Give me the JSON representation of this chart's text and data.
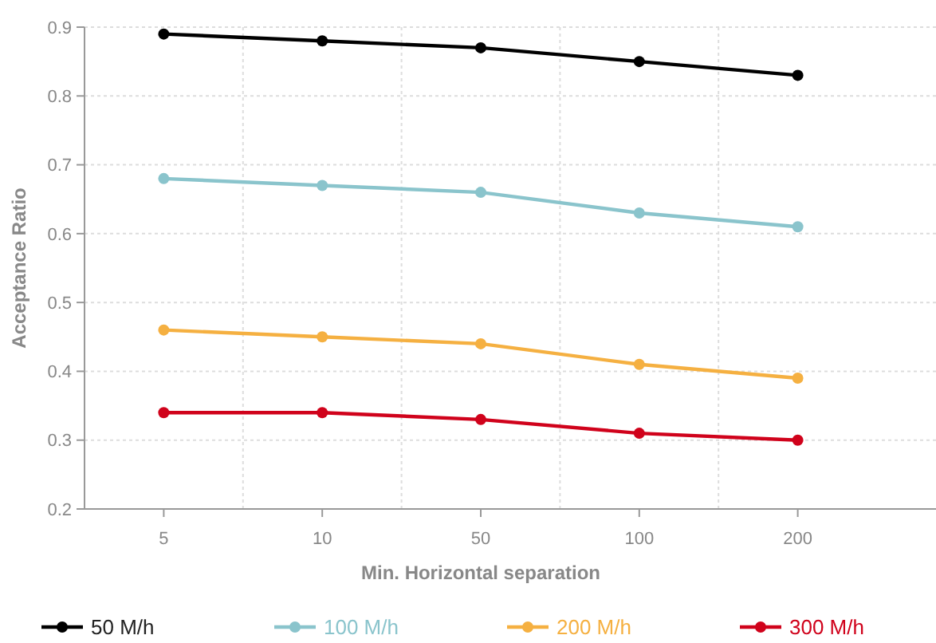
{
  "chart_data": {
    "type": "line",
    "xlabel": "Min. Horizontal separation",
    "ylabel": "Acceptance Ratio",
    "categories": [
      "5",
      "10",
      "50",
      "100",
      "200"
    ],
    "series": [
      {
        "name": "50 M/h",
        "color": "#000000",
        "values": [
          0.89,
          0.88,
          0.87,
          0.85,
          0.83
        ]
      },
      {
        "name": "100 M/h",
        "color": "#8ac4cc",
        "values": [
          0.68,
          0.67,
          0.66,
          0.63,
          0.61
        ]
      },
      {
        "name": "200 M/h",
        "color": "#f5b041",
        "values": [
          0.46,
          0.45,
          0.44,
          0.41,
          0.39
        ]
      },
      {
        "name": "300 M/h",
        "color": "#d0021b",
        "values": [
          0.34,
          0.34,
          0.33,
          0.31,
          0.3
        ]
      }
    ],
    "ylim": [
      0.2,
      0.9
    ],
    "yticks": [
      0.2,
      0.3,
      0.4,
      0.5,
      0.6,
      0.7,
      0.8,
      0.9
    ],
    "grid": true,
    "legend": "bottom",
    "marker": "circle",
    "line_style": "solid"
  }
}
